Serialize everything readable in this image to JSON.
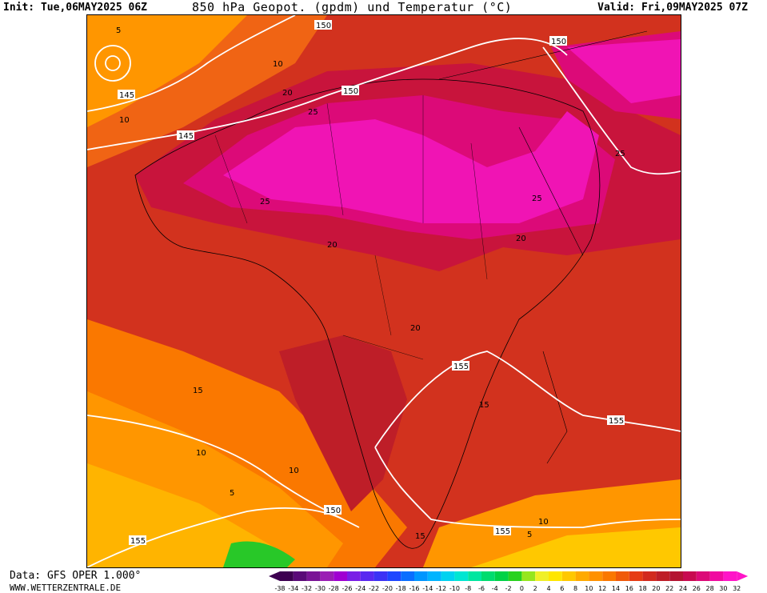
{
  "header": {
    "init": "Init: Tue,06MAY2025 06Z",
    "title": "850 hPa Geopot. (gpdm) und Temperatur (°C)",
    "valid": "Valid: Fri,09MAY2025 07Z"
  },
  "footer": {
    "data_source": "Data: GFS OPER 1.000°",
    "website": "WWW.WETTERZENTRALE.DE"
  },
  "legend": {
    "ticks": [
      "-38",
      "-34",
      "-32",
      "-30",
      "-28",
      "-26",
      "-24",
      "-22",
      "-20",
      "-18",
      "-16",
      "-14",
      "-12",
      "-10",
      "-8",
      "-6",
      "-4",
      "-2",
      "0",
      "2",
      "4",
      "6",
      "8",
      "10",
      "12",
      "14",
      "16",
      "18",
      "20",
      "22",
      "24",
      "26",
      "28",
      "30",
      "32"
    ],
    "colors": [
      "#3d0050",
      "#5a0a78",
      "#7a1496",
      "#9a1eb4",
      "#a000d2",
      "#7a1ee6",
      "#5a28f0",
      "#3c32f5",
      "#1e46ff",
      "#0a6eff",
      "#0096ff",
      "#00b4ff",
      "#00d2f0",
      "#00e6d2",
      "#00e6a0",
      "#00dc6e",
      "#00d246",
      "#28d21e",
      "#96e61e",
      "#f0f028",
      "#ffe600",
      "#ffc800",
      "#ffaa00",
      "#ff9100",
      "#fa7800",
      "#f05a0a",
      "#e63c14",
      "#d22a1e",
      "#be1e28",
      "#b41432",
      "#c80a50",
      "#dc0a78",
      "#f00aa0",
      "#ff14c8"
    ]
  },
  "contour_labels": {
    "geopotential": [
      "145",
      "150",
      "150",
      "150",
      "145",
      "150",
      "155",
      "155",
      "150",
      "155",
      "155",
      "150"
    ],
    "temperature": [
      "5",
      "10",
      "10",
      "20",
      "25",
      "25",
      "25",
      "20",
      "25",
      "20",
      "20",
      "15",
      "15",
      "10",
      "10",
      "5",
      "15",
      "10",
      "5"
    ]
  },
  "colors": {
    "hot_core": "#f014b4",
    "very_warm": "#c8143c",
    "warm": "#d2321e",
    "mild": "#ff9600",
    "cool": "#ffc800",
    "cold": "#28c828"
  }
}
